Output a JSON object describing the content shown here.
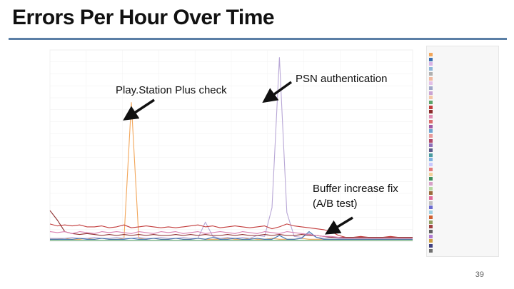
{
  "slide": {
    "title": "Errors Per Hour Over Time",
    "page_number": "39"
  },
  "annotations": {
    "ps_plus": "Play.Station Plus check",
    "psn_auth": "PSN authentication",
    "buffer_line1": "Buffer increase fix",
    "buffer_line2": "(A/B test)"
  },
  "colors": {
    "accent_rule": "#5b7fa6"
  },
  "chart_data": {
    "type": "line",
    "title": "",
    "xlabel": "",
    "ylabel": "",
    "x": [
      0,
      1,
      2,
      3,
      4,
      5,
      6,
      7,
      8,
      9,
      10,
      11,
      12,
      13,
      14,
      15,
      16,
      17,
      18,
      19,
      20,
      21,
      22,
      23,
      24,
      25,
      26,
      27,
      28,
      29,
      30,
      31,
      32,
      33,
      34,
      35,
      36,
      37,
      38,
      39,
      40,
      41,
      42,
      43,
      44,
      45,
      46,
      47,
      48,
      49
    ],
    "ylim": [
      0,
      2.0
    ],
    "grid": true,
    "legend_placement": "right",
    "series": [
      {
        "color": "#f2a65a",
        "values": [
          0.02,
          0.02,
          0.03,
          0.02,
          0.02,
          0.03,
          0.02,
          0.03,
          0.02,
          0.02,
          0.03,
          1.45,
          0.03,
          0.02,
          0.03,
          0.02,
          0.02,
          0.03,
          0.02,
          0.02,
          0.03,
          0.02,
          0.02,
          0.02,
          0.03,
          0.02,
          0.02,
          0.03,
          0.02,
          0.02,
          0.03,
          0.02,
          0.02,
          0.02,
          0.03,
          0.02,
          0.02,
          0.02,
          0.02,
          0.02,
          0.02,
          0.02,
          0.02,
          0.02,
          0.02,
          0.02,
          0.02,
          0.02,
          0.02,
          0.02
        ]
      },
      {
        "color": "#b8a7d6",
        "values": [
          0.03,
          0.03,
          0.03,
          0.04,
          0.03,
          0.03,
          0.04,
          0.03,
          0.03,
          0.04,
          0.03,
          0.03,
          0.04,
          0.03,
          0.03,
          0.04,
          0.03,
          0.03,
          0.04,
          0.03,
          0.03,
          0.2,
          0.05,
          0.03,
          0.04,
          0.03,
          0.04,
          0.03,
          0.06,
          0.05,
          0.35,
          1.92,
          0.3,
          0.05,
          0.04,
          0.08,
          0.04,
          0.03,
          0.04,
          0.03,
          0.03,
          0.03,
          0.03,
          0.03,
          0.03,
          0.03,
          0.03,
          0.03,
          0.03,
          0.03
        ]
      },
      {
        "color": "#c23b3b",
        "values": [
          0.18,
          0.16,
          0.17,
          0.16,
          0.17,
          0.15,
          0.15,
          0.16,
          0.14,
          0.15,
          0.17,
          0.14,
          0.15,
          0.16,
          0.15,
          0.14,
          0.15,
          0.14,
          0.15,
          0.16,
          0.17,
          0.15,
          0.16,
          0.14,
          0.15,
          0.16,
          0.15,
          0.14,
          0.15,
          0.16,
          0.13,
          0.15,
          0.18,
          0.16,
          0.15,
          0.14,
          0.13,
          0.12,
          0.1,
          0.06,
          0.04,
          0.04,
          0.05,
          0.04,
          0.04,
          0.04,
          0.05,
          0.04,
          0.04,
          0.04
        ]
      },
      {
        "color": "#8b2b2b",
        "values": [
          0.32,
          0.22,
          0.1,
          0.08,
          0.07,
          0.08,
          0.07,
          0.06,
          0.07,
          0.06,
          0.07,
          0.06,
          0.07,
          0.06,
          0.07,
          0.06,
          0.06,
          0.07,
          0.06,
          0.07,
          0.06,
          0.07,
          0.06,
          0.06,
          0.07,
          0.06,
          0.07,
          0.06,
          0.06,
          0.07,
          0.06,
          0.07,
          0.06,
          0.06,
          0.07,
          0.06,
          0.06,
          0.05,
          0.04,
          0.04,
          0.04,
          0.04,
          0.04,
          0.04,
          0.04,
          0.04,
          0.04,
          0.04,
          0.04,
          0.04
        ]
      },
      {
        "color": "#3a6fb0",
        "values": [
          0.02,
          0.02,
          0.02,
          0.02,
          0.03,
          0.02,
          0.02,
          0.03,
          0.02,
          0.02,
          0.02,
          0.03,
          0.02,
          0.02,
          0.03,
          0.02,
          0.02,
          0.03,
          0.02,
          0.02,
          0.03,
          0.02,
          0.04,
          0.02,
          0.02,
          0.03,
          0.02,
          0.02,
          0.03,
          0.02,
          0.02,
          0.06,
          0.02,
          0.02,
          0.03,
          0.1,
          0.04,
          0.02,
          0.02,
          0.02,
          0.02,
          0.02,
          0.02,
          0.02,
          0.02,
          0.02,
          0.02,
          0.02,
          0.02,
          0.02
        ]
      },
      {
        "color": "#5aa469",
        "values": [
          0.01,
          0.01,
          0.01,
          0.01,
          0.01,
          0.01,
          0.01,
          0.01,
          0.01,
          0.01,
          0.01,
          0.01,
          0.01,
          0.01,
          0.01,
          0.01,
          0.01,
          0.01,
          0.01,
          0.01,
          0.01,
          0.01,
          0.01,
          0.01,
          0.01,
          0.01,
          0.01,
          0.01,
          0.01,
          0.01,
          0.01,
          0.01,
          0.01,
          0.01,
          0.01,
          0.01,
          0.01,
          0.01,
          0.01,
          0.01,
          0.01,
          0.01,
          0.01,
          0.01,
          0.01,
          0.01,
          0.01,
          0.01,
          0.01,
          0.01
        ]
      },
      {
        "color": "#d97fb0",
        "values": [
          0.1,
          0.09,
          0.1,
          0.08,
          0.1,
          0.09,
          0.08,
          0.1,
          0.09,
          0.1,
          0.09,
          0.08,
          0.1,
          0.09,
          0.08,
          0.1,
          0.09,
          0.1,
          0.08,
          0.09,
          0.1,
          0.08,
          0.09,
          0.1,
          0.09,
          0.08,
          0.1,
          0.09,
          0.08,
          0.1,
          0.09,
          0.08,
          0.1,
          0.09,
          0.08,
          0.07,
          0.06,
          0.05,
          0.05,
          0.04,
          0.03,
          0.03,
          0.03,
          0.03,
          0.03,
          0.03,
          0.03,
          0.03,
          0.03,
          0.03
        ]
      }
    ]
  }
}
